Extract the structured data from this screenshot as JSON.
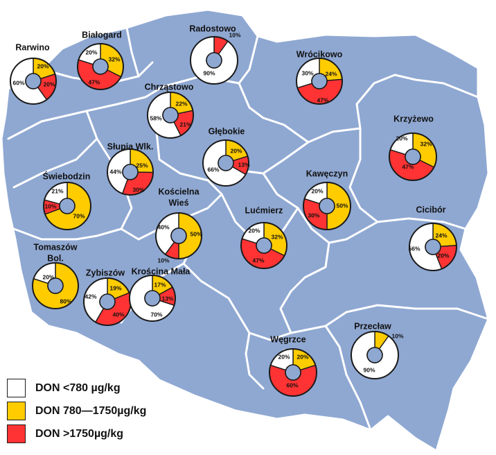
{
  "colors": {
    "land": "#8fa8d2",
    "borders": "#ffffff",
    "low": "#ffffff",
    "mid": "#ffcc00",
    "high": "#ff3333",
    "hole": "#8fa8d2",
    "outline": "#1a1a1a"
  },
  "legend": [
    {
      "key": "low",
      "label": "DON <780 µg/kg"
    },
    {
      "key": "mid",
      "label": "DON 780—1750µg/kg"
    },
    {
      "key": "high",
      "label": "DON >1750µg/kg"
    }
  ],
  "stations": [
    {
      "name": "Rarwino",
      "slices": [
        {
          "cat": "mid",
          "pct": 20
        },
        {
          "cat": "high",
          "pct": 20
        },
        {
          "cat": "low",
          "pct": 60
        }
      ]
    },
    {
      "name": "Białogard",
      "slices": [
        {
          "cat": "mid",
          "pct": 32
        },
        {
          "cat": "high",
          "pct": 47
        },
        {
          "cat": "low",
          "pct": 20
        }
      ]
    },
    {
      "name": "Radostowo",
      "slices": [
        {
          "cat": "high",
          "pct": 10
        },
        {
          "cat": "low",
          "pct": 90
        }
      ]
    },
    {
      "name": "Wrócikowo",
      "slices": [
        {
          "cat": "mid",
          "pct": 24
        },
        {
          "cat": "high",
          "pct": 47
        },
        {
          "cat": "low",
          "pct": 30
        }
      ]
    },
    {
      "name": "Chrząstowo",
      "slices": [
        {
          "cat": "mid",
          "pct": 22
        },
        {
          "cat": "high",
          "pct": 21
        },
        {
          "cat": "low",
          "pct": 58
        }
      ]
    },
    {
      "name": "Głębokie",
      "slices": [
        {
          "cat": "mid",
          "pct": 20
        },
        {
          "cat": "high",
          "pct": 13
        },
        {
          "cat": "low",
          "pct": 66
        }
      ]
    },
    {
      "name": "Krzyżewo",
      "slices": [
        {
          "cat": "mid",
          "pct": 32
        },
        {
          "cat": "high",
          "pct": 47
        },
        {
          "cat": "low",
          "pct": 20
        }
      ]
    },
    {
      "name": "Słupia Wlk.",
      "slices": [
        {
          "cat": "mid",
          "pct": 25
        },
        {
          "cat": "high",
          "pct": 30
        },
        {
          "cat": "low",
          "pct": 44
        }
      ]
    },
    {
      "name": "Świebodzin",
      "slices": [
        {
          "cat": "mid",
          "pct": 70
        },
        {
          "cat": "high",
          "pct": 10
        },
        {
          "cat": "low",
          "pct": 21
        }
      ]
    },
    {
      "name": "Kawęczyn",
      "slices": [
        {
          "cat": "mid",
          "pct": 50
        },
        {
          "cat": "high",
          "pct": 30
        },
        {
          "cat": "low",
          "pct": 20
        }
      ]
    },
    {
      "name": "Kościelna Wieś",
      "slices": [
        {
          "cat": "mid",
          "pct": 50
        },
        {
          "cat": "high",
          "pct": 10
        },
        {
          "cat": "low",
          "pct": 40
        }
      ]
    },
    {
      "name": "Lućmierz",
      "slices": [
        {
          "cat": "mid",
          "pct": 32
        },
        {
          "cat": "high",
          "pct": 47
        },
        {
          "cat": "low",
          "pct": 20
        }
      ]
    },
    {
      "name": "Cicibór",
      "slices": [
        {
          "cat": "mid",
          "pct": 24
        },
        {
          "cat": "high",
          "pct": 20
        },
        {
          "cat": "low",
          "pct": 56
        }
      ]
    },
    {
      "name": "Tomaszów Bol.",
      "slices": [
        {
          "cat": "mid",
          "pct": 80
        },
        {
          "cat": "low",
          "pct": 20
        }
      ]
    },
    {
      "name": "Zybiszów",
      "slices": [
        {
          "cat": "mid",
          "pct": 19
        },
        {
          "cat": "high",
          "pct": 40
        },
        {
          "cat": "low",
          "pct": 42
        }
      ]
    },
    {
      "name": "Krościna Mała",
      "slices": [
        {
          "cat": "mid",
          "pct": 17
        },
        {
          "cat": "high",
          "pct": 13
        },
        {
          "cat": "low",
          "pct": 70
        }
      ]
    },
    {
      "name": "Węgrzce",
      "slices": [
        {
          "cat": "mid",
          "pct": 20
        },
        {
          "cat": "high",
          "pct": 60
        },
        {
          "cat": "low",
          "pct": 20
        }
      ]
    },
    {
      "name": "Przecław",
      "slices": [
        {
          "cat": "mid",
          "pct": 10
        },
        {
          "cat": "low",
          "pct": 90
        }
      ]
    }
  ]
}
